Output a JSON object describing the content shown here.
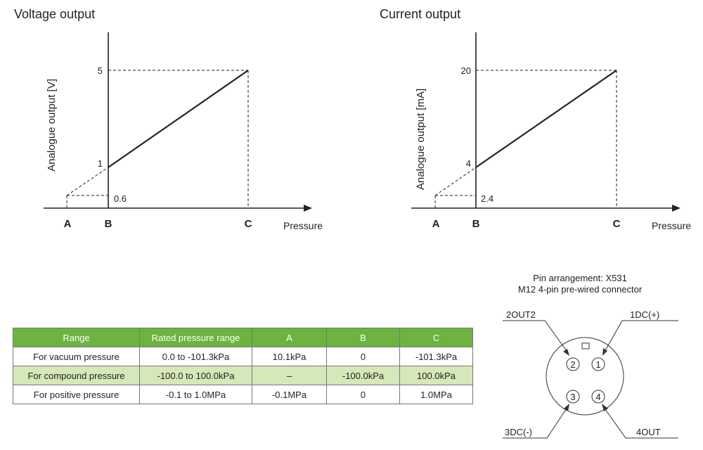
{
  "voltage_chart": {
    "title": "Voltage output",
    "ylabel": "Analogue output [V]",
    "xlabel": "Pressure",
    "y_ticks": [
      "5",
      "1",
      "0.6"
    ],
    "x_labels": [
      "A",
      "B",
      "C"
    ]
  },
  "current_chart": {
    "title": "Current output",
    "ylabel": "Analogue output [mA]",
    "xlabel": "Pressure",
    "y_ticks": [
      "20",
      "4",
      "2.4"
    ],
    "x_labels": [
      "A",
      "B",
      "C"
    ]
  },
  "chart_data": [
    {
      "type": "line",
      "title": "Voltage output",
      "xlabel": "Pressure",
      "ylabel": "Analogue output [V]",
      "x": [
        "A",
        "B",
        "C"
      ],
      "series": [
        {
          "values": [
            0.6,
            1,
            5
          ]
        }
      ],
      "y_ticks": [
        0.6,
        1,
        5
      ]
    },
    {
      "type": "line",
      "title": "Current output",
      "xlabel": "Pressure",
      "ylabel": "Analogue output [mA]",
      "x": [
        "A",
        "B",
        "C"
      ],
      "series": [
        {
          "values": [
            2.4,
            4,
            20
          ]
        }
      ],
      "y_ticks": [
        2.4,
        4,
        20
      ]
    }
  ],
  "table": {
    "headers": [
      "Range",
      "Rated pressure range",
      "A",
      "B",
      "C"
    ],
    "rows": [
      [
        "For vacuum pressure",
        "0.0 to -101.3kPa",
        "10.1kPa",
        "0",
        "-101.3kPa"
      ],
      [
        "For compound pressure",
        "-100.0 to 100.0kPa",
        "–",
        "-100.0kPa",
        "100.0kPa"
      ],
      [
        "For positive pressure",
        "-0.1 to 1.0MPa",
        "-0.1MPa",
        "0",
        "1.0MPa"
      ]
    ],
    "header_color": "#6cb33f",
    "alt_row_color": "#d4e8b8"
  },
  "pin": {
    "caption_line1": "Pin arrangement: X531",
    "caption_line2": "M12 4-pin pre-wired connector",
    "labels": {
      "out2": "2OUT2",
      "dc_plus": "1DC(+)",
      "dc_minus": "3DC(-)",
      "out": "4OUT"
    },
    "numbers": [
      "1",
      "2",
      "3",
      "4"
    ]
  }
}
